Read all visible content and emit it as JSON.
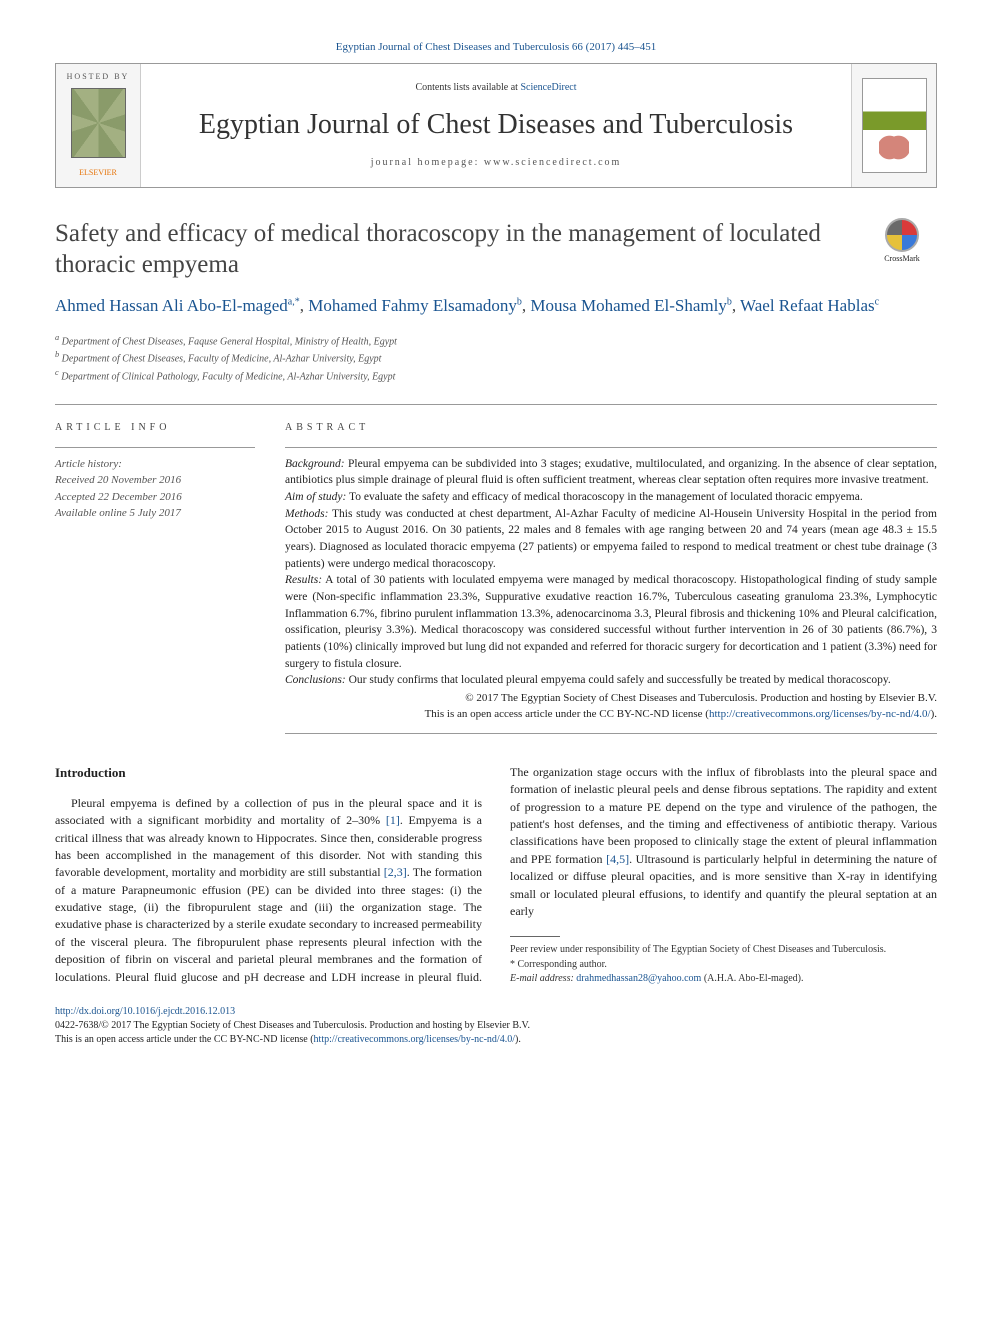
{
  "citation_line": "Egyptian Journal of Chest Diseases and Tuberculosis 66 (2017) 445–451",
  "header": {
    "hosted_by": "HOSTED BY",
    "elsevier": "ELSEVIER",
    "contents": "Contents lists available at ",
    "contents_link": "ScienceDirect",
    "journal": "Egyptian Journal of Chest Diseases and Tuberculosis",
    "homepage": "journal homepage: www.sciencedirect.com",
    "cover_text": "CHEST"
  },
  "title": "Safety and efficacy of medical thoracoscopy in the management of loculated thoracic empyema",
  "crossmark": "CrossMark",
  "authors": [
    {
      "name": "Ahmed Hassan Ali Abo-El-maged",
      "sup": "a,*"
    },
    {
      "name": "Mohamed Fahmy Elsamadony",
      "sup": "b"
    },
    {
      "name": "Mousa Mohamed El-Shamly",
      "sup": "b"
    },
    {
      "name": "Wael Refaat Hablas",
      "sup": "c"
    }
  ],
  "affiliations": [
    {
      "sup": "a",
      "text": "Department of Chest Diseases, Faquse General Hospital, Ministry of Health, Egypt"
    },
    {
      "sup": "b",
      "text": "Department of Chest Diseases, Faculty of Medicine, Al-Azhar University, Egypt"
    },
    {
      "sup": "c",
      "text": "Department of Clinical Pathology, Faculty of Medicine, Al-Azhar University, Egypt"
    }
  ],
  "article_info": {
    "label": "ARTICLE INFO",
    "history_label": "Article history:",
    "received": "Received 20 November 2016",
    "accepted": "Accepted 22 December 2016",
    "online": "Available online 5 July 2017"
  },
  "abstract": {
    "label": "ABSTRACT",
    "background_label": "Background:",
    "background": "Pleural empyema can be subdivided into 3 stages; exudative, multiloculated, and organizing. In the absence of clear septation, antibiotics plus simple drainage of pleural fluid is often sufficient treatment, whereas clear septation often requires more invasive treatment.",
    "aim_label": "Aim of study:",
    "aim": "To evaluate the safety and efficacy of medical thoracoscopy in the management of loculated thoracic empyema.",
    "methods_label": "Methods:",
    "methods": "This study was conducted at chest department, Al-Azhar Faculty of medicine Al-Housein University Hospital in the period from October 2015 to August 2016. On 30 patients, 22 males and 8 females with age ranging between 20 and 74 years (mean age 48.3 ± 15.5 years). Diagnosed as loculated thoracic empyema (27 patients) or empyema failed to respond to medical treatment or chest tube drainage (3 patients) were undergo medical thoracoscopy.",
    "results_label": "Results:",
    "results": "A total of 30 patients with loculated empyema were managed by medical thoracoscopy. Histopathological finding of study sample were (Non-specific inflammation 23.3%, Suppurative exudative reaction 16.7%, Tuberculous caseating granuloma 23.3%, Lymphocytic Inflammation 6.7%, fibrino purulent inflammation 13.3%, adenocarcinoma 3.3, Pleural fibrosis and thickening 10% and Pleural calcification, ossification, pleurisy 3.3%). Medical thoracoscopy was considered successful without further intervention in 26 of 30 patients (86.7%), 3 patients (10%) clinically improved but lung did not expanded and referred for thoracic surgery for decortication and 1 patient (3.3%) need for surgery to fistula closure.",
    "conclusions_label": "Conclusions:",
    "conclusions": "Our study confirms that loculated pleural empyema could safely and successfully be treated by medical thoracoscopy.",
    "copyright1": "© 2017 The Egyptian Society of Chest Diseases and Tuberculosis. Production and hosting by Elsevier B.V.",
    "copyright2": "This is an open access article under the CC BY-NC-ND license (",
    "license_link": "http://creativecommons.org/licenses/by-nc-nd/4.0/",
    "copyright3": ")."
  },
  "intro": {
    "heading": "Introduction",
    "para": "Pleural empyema is defined by a collection of pus in the pleural space and it is associated with a significant morbidity and mortality of 2–30% [1]. Empyema is a critical illness that was already known to Hippocrates. Since then, considerable progress has been accomplished in the management of this disorder. Not with standing this favorable development, mortality and morbidity are still substantial [2,3]. The formation of a mature Parapneumonic effusion (PE) can be divided into three stages: (i) the exudative stage, (ii) the fibropurulent stage and (iii) the organization stage. The exudative phase is characterized by a sterile exudate secondary to increased permeability of the visceral pleura. The fibropurulent phase represents pleural infection with the deposition of fibrin on visceral and parietal pleural membranes and the formation of loculations. Pleural fluid glucose and pH decrease and LDH increase in pleural fluid. The organization stage occurs with the influx of fibroblasts into the pleural space and formation of inelastic pleural peels and dense fibrous septations. The rapidity and extent of progression to a mature PE depend on the type and virulence of the pathogen, the patient's host defenses, and the timing and effectiveness of antibiotic therapy. Various classifications have been proposed to clinically stage the extent of pleural inflammation and PPE formation [4,5]. Ultrasound is particularly helpful in determining the nature of localized or diffuse pleural opacities, and is more sensitive than X-ray in identifying small or loculated pleural effusions, to identify and quantify the pleural septation at an early"
  },
  "footnotes": {
    "peer": "Peer review under responsibility of The Egyptian Society of Chest Diseases and Tuberculosis.",
    "corr_label": "* Corresponding author.",
    "email_label": "E-mail address:",
    "email": "drahmedhassan28@yahoo.com",
    "email_suffix": " (A.H.A. Abo-El-maged)."
  },
  "bottom": {
    "doi": "http://dx.doi.org/10.1016/j.ejcdt.2016.12.013",
    "issn_line": "0422-7638/© 2017 The Egyptian Society of Chest Diseases and Tuberculosis. Production and hosting by Elsevier B.V.",
    "license_line": "This is an open access article under the CC BY-NC-ND license (",
    "license_link": "http://creativecommons.org/licenses/by-nc-nd/4.0/",
    "license_close": ")."
  },
  "colors": {
    "link": "#1a5490",
    "orange": "#e6740a"
  }
}
